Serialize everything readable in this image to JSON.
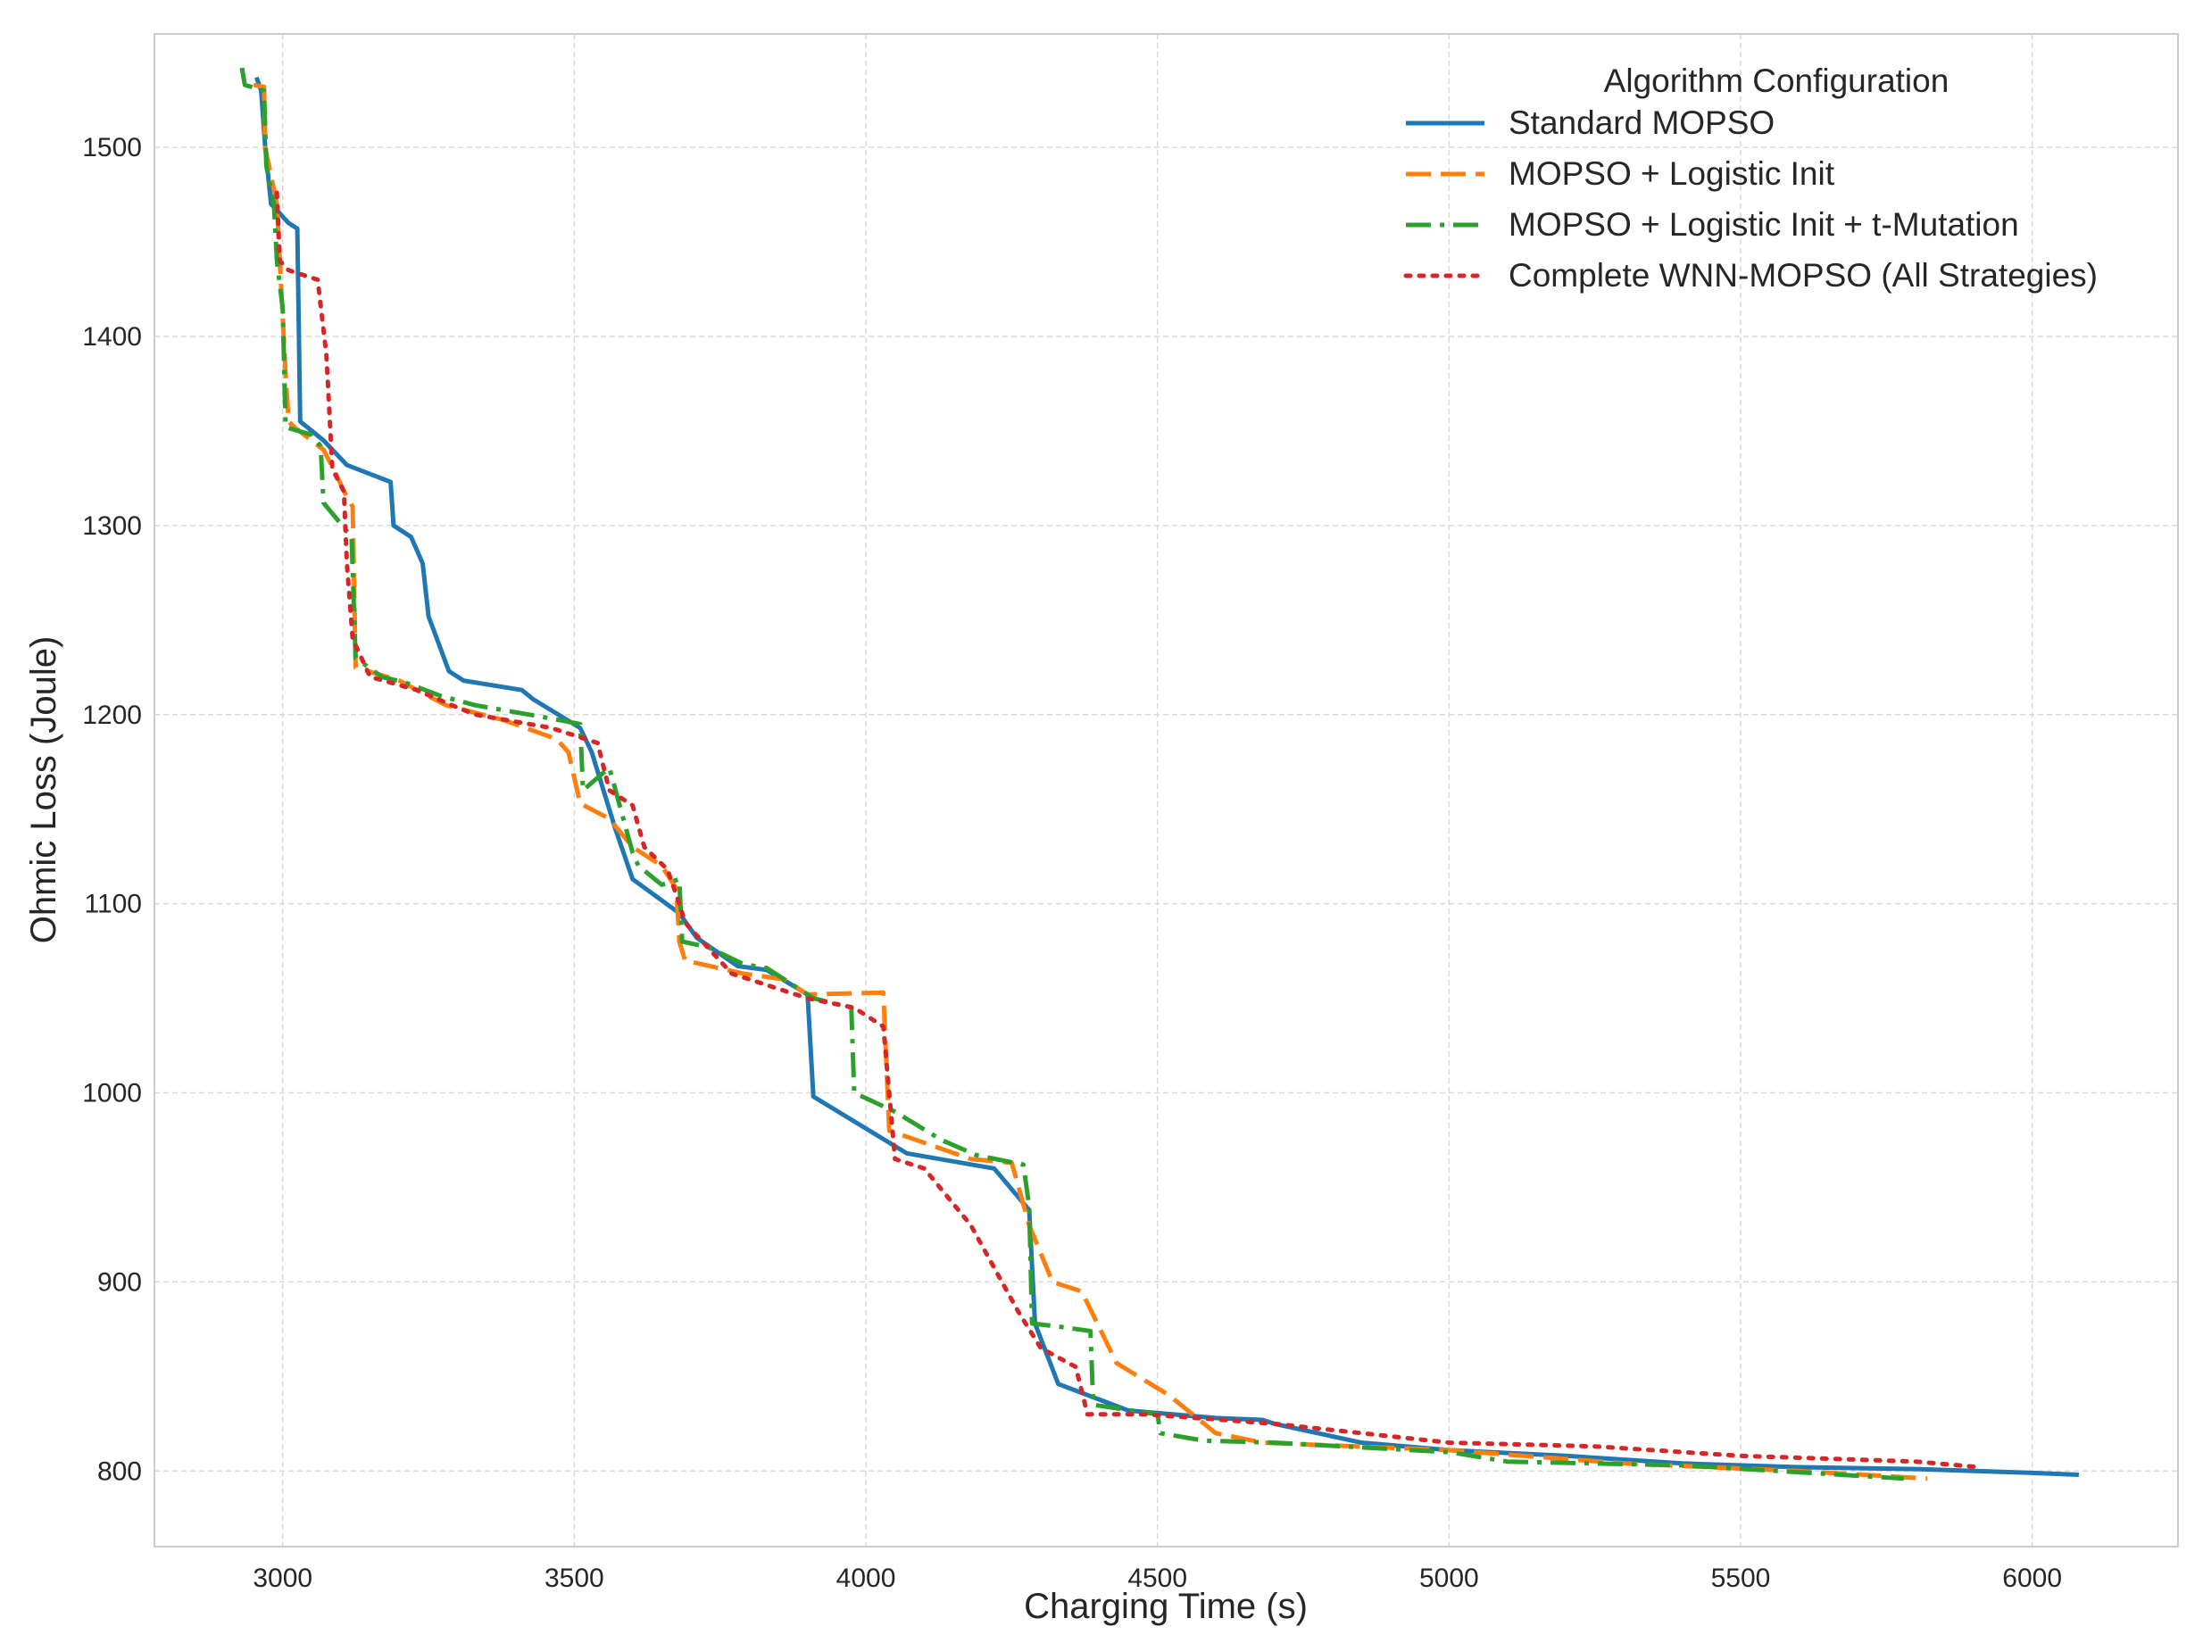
{
  "chart_data": {
    "type": "line",
    "title": "",
    "xlabel": "Charging Time (s)",
    "ylabel": "Ohmic Loss (Joule)",
    "xlim": [
      2780,
      6250
    ],
    "ylim": [
      760,
      1560
    ],
    "xticks": [
      3000,
      3500,
      4000,
      4500,
      5000,
      5500,
      6000
    ],
    "yticks": [
      800,
      900,
      1000,
      1100,
      1200,
      1300,
      1400,
      1500
    ],
    "grid": true,
    "legend_title": "Algorithm Configuration",
    "legend_position": "top-right",
    "series": [
      {
        "name": "Standard MOPSO",
        "color": "#1f77b4",
        "dash": "solid",
        "points": [
          [
            2955,
            1537
          ],
          [
            2963,
            1530
          ],
          [
            2970,
            1500
          ],
          [
            2980,
            1470
          ],
          [
            3010,
            1460
          ],
          [
            3025,
            1457
          ],
          [
            3030,
            1355
          ],
          [
            3070,
            1345
          ],
          [
            3110,
            1332
          ],
          [
            3185,
            1323
          ],
          [
            3190,
            1300
          ],
          [
            3220,
            1294
          ],
          [
            3240,
            1280
          ],
          [
            3250,
            1252
          ],
          [
            3285,
            1223
          ],
          [
            3310,
            1218
          ],
          [
            3410,
            1213
          ],
          [
            3430,
            1208
          ],
          [
            3510,
            1193
          ],
          [
            3530,
            1180
          ],
          [
            3570,
            1140
          ],
          [
            3600,
            1113
          ],
          [
            3680,
            1095
          ],
          [
            3710,
            1082
          ],
          [
            3780,
            1067
          ],
          [
            3830,
            1065
          ],
          [
            3900,
            1052
          ],
          [
            3910,
            998
          ],
          [
            4070,
            968
          ],
          [
            4220,
            960
          ],
          [
            4280,
            938
          ],
          [
            4290,
            878
          ],
          [
            4330,
            846
          ],
          [
            4450,
            832
          ],
          [
            4600,
            828
          ],
          [
            4680,
            827
          ],
          [
            4700,
            825
          ],
          [
            4850,
            815
          ],
          [
            5000,
            811
          ],
          [
            5200,
            808
          ],
          [
            5400,
            804
          ],
          [
            5600,
            802
          ],
          [
            5800,
            801
          ],
          [
            6000,
            799
          ],
          [
            6080,
            798
          ]
        ]
      },
      {
        "name": "MOPSO + Logistic Init",
        "color": "#ff7f0e",
        "dash": "long",
        "points": [
          [
            2950,
            1533
          ],
          [
            2968,
            1532
          ],
          [
            2970,
            1500
          ],
          [
            2990,
            1470
          ],
          [
            2995,
            1440
          ],
          [
            3005,
            1380
          ],
          [
            3010,
            1355
          ],
          [
            3020,
            1352
          ],
          [
            3070,
            1340
          ],
          [
            3090,
            1328
          ],
          [
            3110,
            1315
          ],
          [
            3120,
            1310
          ],
          [
            3125,
            1225
          ],
          [
            3200,
            1218
          ],
          [
            3230,
            1213
          ],
          [
            3280,
            1205
          ],
          [
            3380,
            1197
          ],
          [
            3470,
            1187
          ],
          [
            3490,
            1180
          ],
          [
            3510,
            1153
          ],
          [
            3560,
            1145
          ],
          [
            3600,
            1130
          ],
          [
            3650,
            1120
          ],
          [
            3675,
            1108
          ],
          [
            3680,
            1080
          ],
          [
            3690,
            1070
          ],
          [
            3790,
            1063
          ],
          [
            3860,
            1060
          ],
          [
            3900,
            1052
          ],
          [
            4030,
            1053
          ],
          [
            4040,
            980
          ],
          [
            4180,
            965
          ],
          [
            4250,
            963
          ],
          [
            4280,
            930
          ],
          [
            4320,
            900
          ],
          [
            4370,
            895
          ],
          [
            4430,
            857
          ],
          [
            4520,
            840
          ],
          [
            4600,
            820
          ],
          [
            4680,
            815
          ],
          [
            5000,
            811
          ],
          [
            5300,
            804
          ],
          [
            5600,
            800
          ],
          [
            5820,
            796
          ]
        ]
      },
      {
        "name": "MOPSO + Logistic Init + t-Mutation",
        "color": "#2ca02c",
        "dash": "dashdot",
        "points": [
          [
            2930,
            1542
          ],
          [
            2935,
            1533
          ],
          [
            2968,
            1530
          ],
          [
            2972,
            1490
          ],
          [
            2985,
            1470
          ],
          [
            2990,
            1440
          ],
          [
            3000,
            1415
          ],
          [
            3005,
            1352
          ],
          [
            3050,
            1348
          ],
          [
            3065,
            1342
          ],
          [
            3070,
            1312
          ],
          [
            3110,
            1297
          ],
          [
            3118,
            1295
          ],
          [
            3125,
            1230
          ],
          [
            3170,
            1220
          ],
          [
            3210,
            1217
          ],
          [
            3270,
            1210
          ],
          [
            3330,
            1205
          ],
          [
            3460,
            1198
          ],
          [
            3510,
            1195
          ],
          [
            3515,
            1160
          ],
          [
            3560,
            1172
          ],
          [
            3600,
            1127
          ],
          [
            3610,
            1120
          ],
          [
            3650,
            1110
          ],
          [
            3680,
            1113
          ],
          [
            3685,
            1080
          ],
          [
            3730,
            1077
          ],
          [
            3790,
            1068
          ],
          [
            3830,
            1066
          ],
          [
            3910,
            1050
          ],
          [
            3975,
            1045
          ],
          [
            3980,
            1000
          ],
          [
            4050,
            990
          ],
          [
            4130,
            975
          ],
          [
            4190,
            967
          ],
          [
            4270,
            962
          ],
          [
            4280,
            940
          ],
          [
            4285,
            878
          ],
          [
            4340,
            876
          ],
          [
            4385,
            874
          ],
          [
            4390,
            835
          ],
          [
            4500,
            830
          ],
          [
            4505,
            820
          ],
          [
            4580,
            816
          ],
          [
            4700,
            815
          ],
          [
            5000,
            810
          ],
          [
            5100,
            805
          ],
          [
            5400,
            803
          ],
          [
            5780,
            796
          ]
        ]
      },
      {
        "name": "Complete WNN-MOPSO (All Strategies)",
        "color": "#d62728",
        "dash": "dotted",
        "points": [
          [
            2990,
            1476
          ],
          [
            2995,
            1440
          ],
          [
            3010,
            1435
          ],
          [
            3060,
            1430
          ],
          [
            3075,
            1390
          ],
          [
            3085,
            1330
          ],
          [
            3105,
            1318
          ],
          [
            3110,
            1280
          ],
          [
            3120,
            1240
          ],
          [
            3150,
            1220
          ],
          [
            3230,
            1213
          ],
          [
            3290,
            1205
          ],
          [
            3330,
            1200
          ],
          [
            3460,
            1193
          ],
          [
            3540,
            1185
          ],
          [
            3560,
            1160
          ],
          [
            3600,
            1152
          ],
          [
            3620,
            1130
          ],
          [
            3660,
            1118
          ],
          [
            3680,
            1100
          ],
          [
            3690,
            1090
          ],
          [
            3770,
            1063
          ],
          [
            3900,
            1050
          ],
          [
            3980,
            1045
          ],
          [
            4030,
            1035
          ],
          [
            4050,
            965
          ],
          [
            4100,
            960
          ],
          [
            4180,
            930
          ],
          [
            4260,
            885
          ],
          [
            4300,
            865
          ],
          [
            4360,
            855
          ],
          [
            4380,
            830
          ],
          [
            4480,
            830
          ],
          [
            4700,
            825
          ],
          [
            5000,
            815
          ],
          [
            5250,
            813
          ],
          [
            5500,
            808
          ],
          [
            5800,
            805
          ],
          [
            5910,
            802
          ]
        ]
      }
    ]
  }
}
